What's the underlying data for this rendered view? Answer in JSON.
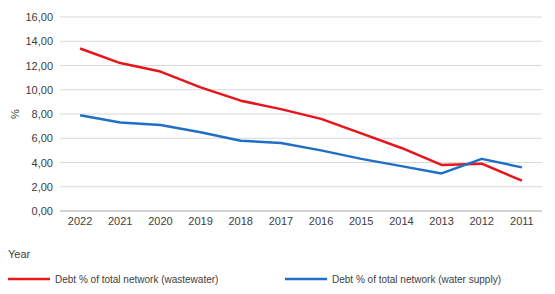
{
  "chart_data": {
    "type": "line",
    "x_label": "Year",
    "y_label": "%",
    "categories": [
      "2022",
      "2021",
      "2020",
      "2019",
      "2018",
      "2017",
      "2016",
      "2015",
      "2014",
      "2013",
      "2012",
      "2011"
    ],
    "series": [
      {
        "name": "Debt % of total network (wastewater)",
        "color": "#e8141b",
        "values": [
          13.4,
          12.2,
          11.5,
          10.2,
          9.1,
          8.4,
          7.6,
          6.4,
          5.2,
          3.8,
          3.9,
          2.5
        ]
      },
      {
        "name": "Debt % of total network (water supply)",
        "color": "#1f6fc6",
        "values": [
          7.9,
          7.3,
          7.1,
          6.5,
          5.8,
          5.6,
          5.0,
          4.3,
          3.7,
          3.1,
          4.3,
          3.6
        ]
      }
    ],
    "ylim": [
      0,
      16
    ],
    "yticks": [
      {
        "value": 0,
        "label": "0,00"
      },
      {
        "value": 2,
        "label": "2,00"
      },
      {
        "value": 4,
        "label": "4,00"
      },
      {
        "value": 6,
        "label": "6,00"
      },
      {
        "value": 8,
        "label": "8,00"
      },
      {
        "value": 10,
        "label": "10,00"
      },
      {
        "value": 12,
        "label": "12,00"
      },
      {
        "value": 14,
        "label": "14,00"
      },
      {
        "value": 16,
        "label": "16,00"
      }
    ],
    "grid": true,
    "legend": "bottom"
  }
}
